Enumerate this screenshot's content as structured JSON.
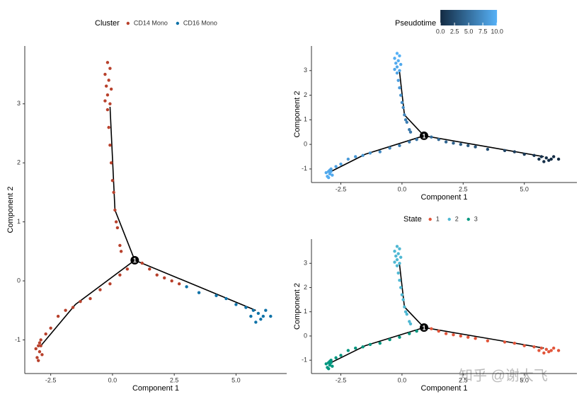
{
  "chart_data": [
    {
      "type": "scatter",
      "xlabel": "Component 1",
      "ylabel": "Component 2",
      "legend_title": "Cluster",
      "xlim": [
        -3.55,
        7.05
      ],
      "ylim": [
        -1.57,
        3.98
      ],
      "xticks": [
        -2.5,
        {
          "value": 0,
          "label": "0.0"
        },
        2.5,
        {
          "value": 5,
          "label": "5.0"
        }
      ],
      "yticks": [
        -1,
        0,
        1,
        2,
        3
      ],
      "series": [
        {
          "name": "CD14 Mono",
          "color": "#b8412c",
          "x": [
            -0.2,
            -0.1,
            -0.3,
            -0.15,
            -0.25,
            -0.05,
            -0.2,
            -0.3,
            -0.1,
            -0.2,
            -0.15,
            -0.1,
            -0.05,
            0.0,
            0.05,
            0.1,
            0.15,
            0.2,
            0.3,
            0.35,
            0.6,
            0.3,
            -0.1,
            -0.5,
            -0.9,
            -1.3,
            -1.6,
            -1.9,
            -2.2,
            -2.5,
            -2.7,
            -2.9,
            -3.0,
            -2.95,
            -3.1,
            -2.85,
            -3.05,
            -2.9,
            -3.0,
            -2.95,
            1.2,
            1.5,
            1.8,
            2.1,
            2.4,
            2.7
          ],
          "values": [
            3.7,
            3.6,
            3.5,
            3.4,
            3.3,
            3.25,
            3.15,
            3.05,
            3.0,
            2.9,
            2.6,
            2.3,
            2.0,
            1.7,
            1.5,
            1.2,
            1.0,
            0.9,
            0.6,
            0.5,
            0.2,
            0.1,
            -0.05,
            -0.15,
            -0.3,
            -0.35,
            -0.45,
            -0.5,
            -0.6,
            -0.8,
            -0.9,
            -1.0,
            -1.1,
            -1.2,
            -1.15,
            -1.25,
            -1.3,
            -1.1,
            -1.35,
            -1.05,
            0.3,
            0.2,
            0.1,
            0.05,
            0.0,
            -0.05
          ]
        },
        {
          "name": "CD16 Mono",
          "color": "#0f72a8",
          "x": [
            3.0,
            3.5,
            4.2,
            4.6,
            5.0,
            5.4,
            5.7,
            5.9,
            6.1,
            5.8,
            6.2,
            6.0,
            6.4,
            5.6
          ],
          "values": [
            -0.1,
            -0.2,
            -0.25,
            -0.3,
            -0.4,
            -0.45,
            -0.5,
            -0.55,
            -0.6,
            -0.7,
            -0.5,
            -0.65,
            -0.6,
            -0.6
          ]
        }
      ],
      "trajectory": [
        {
          "x": [
            0.9,
            0.1,
            -0.1
          ],
          "y": [
            0.35,
            1.2,
            2.95
          ]
        },
        {
          "x": [
            0.9,
            -1.5,
            -2.9
          ],
          "y": [
            0.35,
            -0.4,
            -1.1
          ]
        },
        {
          "x": [
            0.9,
            3.5,
            5.8
          ],
          "y": [
            0.35,
            -0.1,
            -0.5
          ]
        }
      ],
      "branch_point": {
        "x": 0.9,
        "y": 0.35,
        "label": "1"
      }
    },
    {
      "type": "scatter",
      "xlabel": "Component 1",
      "ylabel": "Component 2",
      "legend_title": "Pseudotime",
      "xlim": [
        -3.7,
        7.15
      ],
      "ylim": [
        -1.55,
        4.0
      ],
      "xticks": [
        -2.5,
        {
          "value": 0,
          "label": "0.0"
        },
        2.5,
        {
          "value": 5,
          "label": "5.0"
        }
      ],
      "yticks": [
        -1,
        0,
        1,
        2,
        3
      ],
      "colorbar": {
        "low": "#132B43",
        "high": "#56B1F7",
        "lim": [
          0,
          10
        ],
        "ticks": [
          {
            "value": 0,
            "label": "0.0"
          },
          2.5,
          {
            "value": 5,
            "label": "5.0"
          },
          7.5,
          {
            "value": 10,
            "label": "10.0"
          }
        ]
      },
      "series": [
        {
          "x": [
            -0.2,
            -0.1,
            -0.3,
            -0.15,
            -0.25,
            -0.05,
            -0.2,
            -0.3,
            -0.1,
            -0.2,
            -0.15,
            -0.1,
            -0.05,
            0.0,
            0.05,
            0.1,
            0.15,
            0.2,
            0.3,
            0.35,
            0.6,
            0.3,
            -0.1,
            -0.5,
            -0.9,
            -1.3,
            -1.6,
            -1.9,
            -2.2,
            -2.5,
            -2.7,
            -2.9,
            -3.0,
            -2.95,
            -3.1,
            -2.85,
            -3.05,
            -2.9,
            -3.0,
            -2.95,
            1.2,
            1.5,
            1.8,
            2.1,
            2.4,
            2.7,
            3.0,
            3.5,
            4.2,
            4.6,
            5.0,
            5.4,
            5.7,
            5.9,
            6.1,
            5.8,
            6.2,
            6.0,
            6.4,
            5.6
          ],
          "values": [
            3.7,
            3.6,
            3.5,
            3.4,
            3.3,
            3.25,
            3.15,
            3.05,
            3.0,
            2.9,
            2.6,
            2.3,
            2.0,
            1.7,
            1.5,
            1.2,
            1.0,
            0.9,
            0.6,
            0.5,
            0.2,
            0.1,
            -0.05,
            -0.15,
            -0.3,
            -0.35,
            -0.45,
            -0.5,
            -0.6,
            -0.8,
            -0.9,
            -1.0,
            -1.1,
            -1.2,
            -1.15,
            -1.25,
            -1.3,
            -1.1,
            -1.35,
            -1.05,
            0.3,
            0.2,
            0.1,
            0.05,
            0.0,
            -0.05,
            -0.1,
            -0.2,
            -0.25,
            -0.3,
            -0.4,
            -0.45,
            -0.5,
            -0.55,
            -0.6,
            -0.7,
            -0.5,
            -0.65,
            -0.6,
            -0.6
          ],
          "color_values": [
            10,
            9.9,
            9.7,
            9.6,
            9.5,
            9.4,
            9.3,
            9.2,
            9.1,
            9.0,
            8.6,
            8.2,
            7.8,
            7.4,
            7.1,
            6.7,
            6.4,
            6.2,
            5.8,
            5.6,
            5.6,
            5.9,
            6.3,
            6.7,
            7.1,
            7.5,
            7.8,
            8.1,
            8.4,
            8.7,
            8.9,
            9.1,
            9.3,
            9.4,
            9.4,
            9.5,
            9.6,
            9.3,
            9.7,
            9.2,
            4.9,
            4.6,
            4.3,
            4.0,
            3.7,
            3.4,
            3.1,
            2.6,
            1.9,
            1.5,
            1.1,
            0.7,
            0.4,
            0.2,
            0.05,
            0.3,
            0.1,
            0.2,
            0,
            0.5
          ]
        }
      ],
      "trajectory": [
        {
          "x": [
            0.9,
            0.1,
            -0.1
          ],
          "y": [
            0.35,
            1.2,
            2.95
          ]
        },
        {
          "x": [
            0.9,
            -1.5,
            -2.9
          ],
          "y": [
            0.35,
            -0.4,
            -1.1
          ]
        },
        {
          "x": [
            0.9,
            3.5,
            5.8
          ],
          "y": [
            0.35,
            -0.1,
            -0.5
          ]
        }
      ],
      "branch_point": {
        "x": 0.9,
        "y": 0.35,
        "label": "1"
      }
    },
    {
      "type": "scatter",
      "xlabel": "Component 1",
      "ylabel": "Component 2",
      "legend_title": "State",
      "xlim": [
        -3.7,
        7.15
      ],
      "ylim": [
        -1.55,
        4.0
      ],
      "xticks": [
        -2.5,
        {
          "value": 0,
          "label": "0.0"
        },
        2.5,
        {
          "value": 5,
          "label": "5.0"
        }
      ],
      "yticks": [
        -1,
        0,
        1,
        2,
        3
      ],
      "series": [
        {
          "name": "1",
          "color": "#e2553a",
          "x": [
            1.2,
            1.5,
            1.8,
            2.1,
            2.4,
            2.7,
            3.0,
            3.5,
            4.2,
            4.6,
            5.0,
            5.4,
            5.7,
            5.9,
            6.1,
            5.8,
            6.2,
            6.0,
            6.4,
            5.6
          ],
          "values": [
            0.3,
            0.2,
            0.1,
            0.05,
            0.0,
            -0.05,
            -0.1,
            -0.2,
            -0.25,
            -0.3,
            -0.4,
            -0.45,
            -0.5,
            -0.55,
            -0.6,
            -0.7,
            -0.5,
            -0.65,
            -0.6,
            -0.6
          ]
        },
        {
          "name": "2",
          "color": "#4fb8d3",
          "x": [
            -0.2,
            -0.1,
            -0.3,
            -0.15,
            -0.25,
            -0.05,
            -0.2,
            -0.3,
            -0.1,
            -0.2,
            -0.15,
            -0.1,
            -0.05,
            0.0,
            0.05,
            0.1,
            0.15,
            0.2,
            0.3,
            0.35
          ],
          "values": [
            3.7,
            3.6,
            3.5,
            3.4,
            3.3,
            3.25,
            3.15,
            3.05,
            3.0,
            2.9,
            2.6,
            2.3,
            2.0,
            1.7,
            1.5,
            1.2,
            1.0,
            0.9,
            0.6,
            0.5
          ]
        },
        {
          "name": "3",
          "color": "#00977f",
          "x": [
            0.6,
            0.3,
            -0.1,
            -0.5,
            -0.9,
            -1.3,
            -1.6,
            -1.9,
            -2.2,
            -2.5,
            -2.7,
            -2.9,
            -3.0,
            -2.95,
            -3.1,
            -2.85,
            -3.05,
            -2.9,
            -3.0,
            -2.95
          ],
          "values": [
            0.2,
            0.1,
            -0.05,
            -0.15,
            -0.3,
            -0.35,
            -0.45,
            -0.5,
            -0.6,
            -0.8,
            -0.9,
            -1.0,
            -1.1,
            -1.2,
            -1.15,
            -1.25,
            -1.3,
            -1.1,
            -1.35,
            -1.05
          ]
        }
      ],
      "trajectory": [
        {
          "x": [
            0.9,
            0.1,
            -0.1
          ],
          "y": [
            0.35,
            1.2,
            2.95
          ]
        },
        {
          "x": [
            0.9,
            -1.5,
            -2.9
          ],
          "y": [
            0.35,
            -0.4,
            -1.1
          ]
        },
        {
          "x": [
            0.9,
            3.5,
            5.8
          ],
          "y": [
            0.35,
            -0.1,
            -0.5
          ]
        }
      ],
      "branch_point": {
        "x": 0.9,
        "y": 0.35,
        "label": "1"
      }
    }
  ],
  "watermark": "知乎 @谢大飞"
}
